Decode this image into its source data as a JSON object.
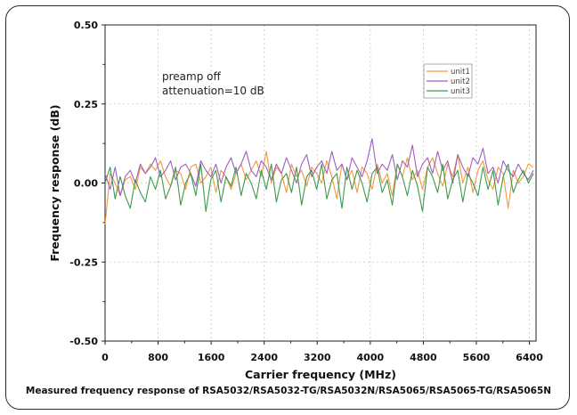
{
  "caption": "Measured frequency response of RSA5032/RSA5032-TG/RSA5032N/RSA5065/RSA5065-TG/RSA5065N",
  "chart_data": {
    "type": "line",
    "xlabel": "Carrier frequency (MHz)",
    "ylabel": "Frequency response (dB)",
    "xlim": [
      0,
      6500
    ],
    "ylim": [
      -0.5,
      0.5
    ],
    "xticks": [
      0,
      800,
      1600,
      2400,
      3200,
      4000,
      4800,
      5600,
      6400
    ],
    "yticks": [
      {
        "value": 0.5,
        "label": "0.50"
      },
      {
        "value": 0.25,
        "label": "0.25"
      },
      {
        "value": 0.0,
        "label": "0.00"
      },
      {
        "value": -0.25,
        "label": "-0.25"
      },
      {
        "value": -0.5,
        "label": "-0.50"
      }
    ],
    "grid": true,
    "legend_position": "top-right",
    "annotations": [
      "preamp off",
      "attenuation=10 dB"
    ],
    "series": [
      {
        "name": "unit1",
        "color": "#f39a3c",
        "values": [
          -0.13,
          0.03,
          0.0,
          -0.04,
          0.01,
          0.02,
          -0.02,
          0.05,
          0.03,
          0.06,
          0.04,
          0.07,
          0.02,
          -0.01,
          0.04,
          0.03,
          -0.02,
          0.05,
          0.06,
          0.0,
          0.02,
          0.05,
          -0.03,
          0.04,
          0.02,
          -0.02,
          0.03,
          0.06,
          0.01,
          0.04,
          0.07,
          0.02,
          0.1,
          0.0,
          0.05,
          0.03,
          -0.03,
          0.06,
          0.02,
          0.04,
          -0.01,
          0.05,
          0.03,
          0.0,
          0.07,
          0.02,
          -0.05,
          0.06,
          0.01,
          0.04,
          -0.03,
          0.05,
          0.03,
          -0.02,
          0.06,
          0.0,
          0.03,
          -0.04,
          0.06,
          0.02,
          0.08,
          0.01,
          0.04,
          -0.02,
          0.05,
          0.08,
          0.03,
          -0.01,
          0.06,
          0.02,
          0.09,
          0.0,
          0.05,
          -0.03,
          0.04,
          0.07,
          0.01,
          -0.02,
          0.05,
          0.03,
          -0.08,
          0.04,
          0.0,
          0.02,
          0.06,
          0.05
        ]
      },
      {
        "name": "unit2",
        "color": "#a05fbf",
        "values": [
          0.03,
          -0.02,
          0.05,
          -0.04,
          0.02,
          0.04,
          0.0,
          0.06,
          0.03,
          0.05,
          0.08,
          0.02,
          0.04,
          0.07,
          0.01,
          0.05,
          0.06,
          0.03,
          -0.01,
          0.07,
          0.04,
          0.02,
          0.06,
          0.0,
          0.05,
          0.08,
          0.03,
          0.06,
          0.1,
          0.04,
          0.02,
          0.07,
          0.05,
          0.01,
          0.06,
          0.03,
          0.08,
          0.04,
          0.0,
          0.06,
          0.09,
          0.02,
          0.05,
          0.07,
          0.03,
          0.1,
          0.04,
          0.06,
          0.01,
          0.08,
          0.05,
          0.02,
          0.07,
          0.14,
          0.03,
          0.06,
          0.04,
          0.09,
          0.01,
          0.07,
          0.05,
          0.12,
          0.02,
          0.06,
          0.08,
          0.03,
          0.1,
          0.04,
          0.07,
          0.0,
          0.09,
          0.05,
          0.02,
          0.08,
          0.06,
          0.11,
          0.03,
          0.05,
          0.0,
          0.07,
          0.04,
          0.02,
          0.06,
          0.03,
          0.01,
          0.04
        ]
      },
      {
        "name": "unit3",
        "color": "#3e9a4c",
        "values": [
          0.0,
          0.05,
          -0.05,
          0.02,
          -0.04,
          -0.08,
          0.01,
          -0.03,
          -0.06,
          0.02,
          -0.02,
          0.04,
          -0.05,
          -0.01,
          0.05,
          -0.07,
          0.0,
          0.03,
          -0.04,
          0.06,
          -0.09,
          0.01,
          0.04,
          -0.06,
          0.02,
          -0.01,
          0.05,
          -0.04,
          0.03,
          0.0,
          -0.05,
          0.04,
          -0.02,
          0.06,
          -0.06,
          0.01,
          0.03,
          -0.03,
          0.05,
          -0.07,
          0.02,
          0.04,
          -0.02,
          0.06,
          -0.05,
          0.01,
          0.03,
          -0.08,
          0.05,
          -0.02,
          0.04,
          0.0,
          -0.06,
          0.03,
          0.05,
          -0.03,
          0.01,
          -0.07,
          0.06,
          0.02,
          -0.04,
          0.04,
          -0.01,
          -0.09,
          0.05,
          0.02,
          -0.03,
          0.06,
          -0.05,
          0.01,
          0.04,
          -0.06,
          0.03,
          0.0,
          -0.04,
          0.05,
          -0.02,
          0.04,
          -0.07,
          0.02,
          0.06,
          -0.03,
          0.01,
          0.04,
          0.0,
          0.03
        ]
      }
    ]
  }
}
